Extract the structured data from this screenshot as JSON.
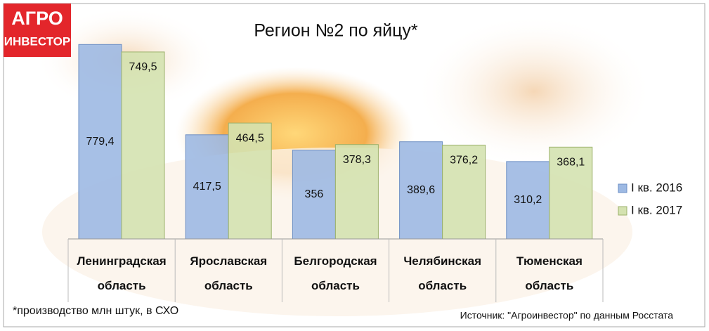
{
  "logo": {
    "line1": "АГРО",
    "line2": "ИНВЕСТОР"
  },
  "chart_data": {
    "type": "bar",
    "title": "Регион №2 по яйцу*",
    "categories": [
      "Ленинградская область",
      "Ярославская область",
      "Белгородская область",
      "Челябинская область",
      "Тюменская область"
    ],
    "series": [
      {
        "name": "I кв. 2016",
        "color": "#9db9e3",
        "values": [
          779.4,
          417.5,
          356,
          389.6,
          310.2
        ],
        "value_labels": [
          "779,4",
          "417,5",
          "356",
          "389,6",
          "310,2"
        ]
      },
      {
        "name": "I кв. 2017",
        "color": "#d4e2b0",
        "values": [
          749.5,
          464.5,
          378.3,
          376.2,
          368.1
        ],
        "value_labels": [
          "749,5",
          "464,5",
          "378,3",
          "376,2",
          "368,1"
        ]
      }
    ],
    "ylim": [
      0,
      800
    ],
    "legend": "right",
    "footnote": "*производство млн штук, в СХО",
    "source": "Источник: \"Агроинвестор\" по данным Росстата"
  }
}
